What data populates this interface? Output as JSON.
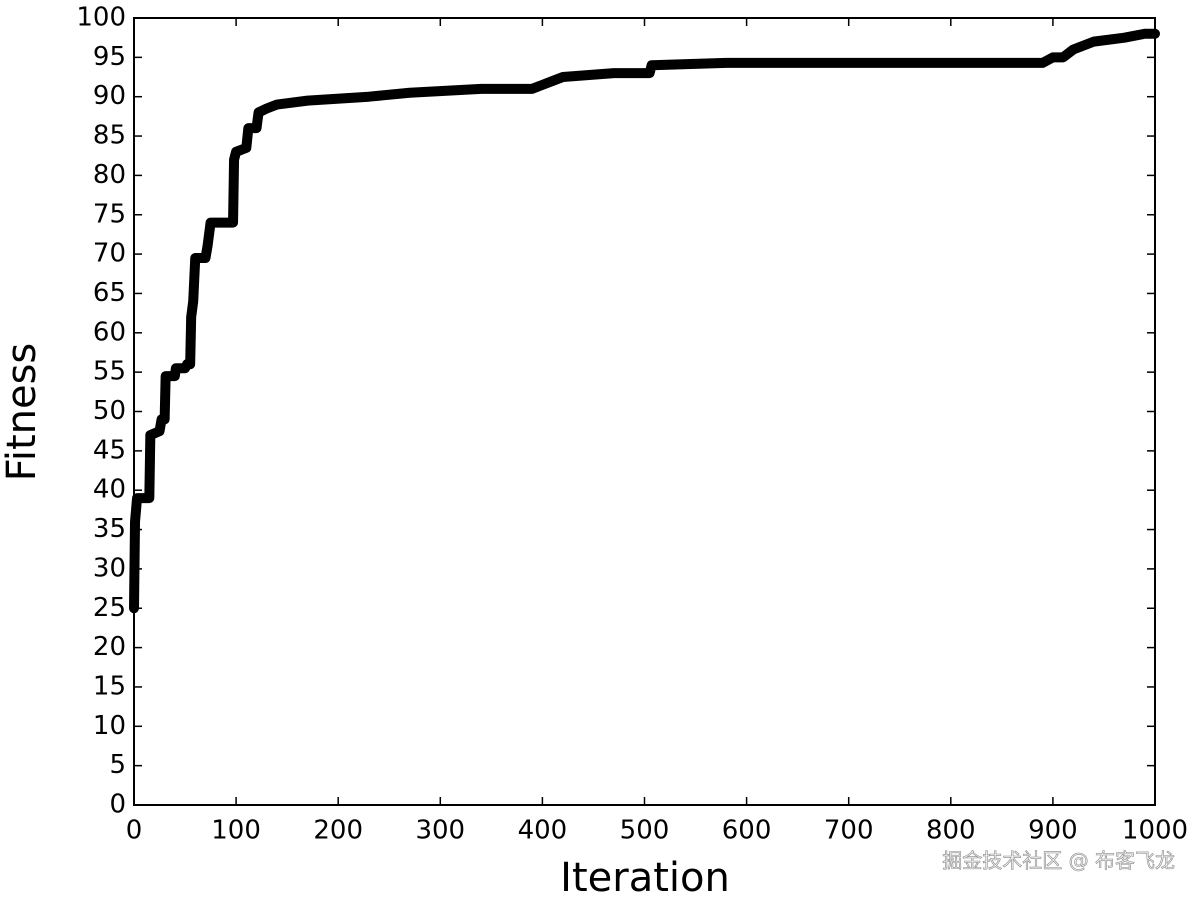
{
  "chart_data": {
    "type": "line",
    "xlabel": "Iteration",
    "ylabel": "Fitness",
    "x": [
      0,
      1,
      3,
      15,
      16,
      25,
      27,
      30,
      31,
      40,
      41,
      50,
      52,
      55,
      56,
      58,
      60,
      70,
      72,
      75,
      97,
      98,
      100,
      110,
      112,
      120,
      122,
      130,
      140,
      170,
      230,
      270,
      340,
      390,
      400,
      410,
      420,
      470,
      505,
      507,
      580,
      890,
      900,
      910,
      920,
      940,
      970,
      990,
      1000
    ],
    "series": [
      {
        "name": "Fitness",
        "color": "#000000",
        "values": [
          25,
          36,
          39,
          39,
          47,
          47.5,
          49,
          49,
          54.5,
          54.5,
          55.5,
          55.5,
          56,
          56,
          62,
          64,
          69.5,
          69.5,
          71,
          74,
          74,
          82,
          83,
          83.5,
          86,
          86,
          88,
          88.5,
          89,
          89.5,
          90,
          90.5,
          91,
          91,
          91.5,
          92,
          92.5,
          93,
          93,
          94,
          94.3,
          94.3,
          95,
          95,
          96,
          97,
          97.5,
          98,
          98
        ]
      }
    ],
    "xlim": [
      0,
      1000
    ],
    "ylim": [
      0,
      100
    ],
    "xticks": [
      0,
      100,
      200,
      300,
      400,
      500,
      600,
      700,
      800,
      900,
      1000
    ],
    "yticks": [
      0,
      5,
      10,
      15,
      20,
      25,
      30,
      35,
      40,
      45,
      50,
      55,
      60,
      65,
      70,
      75,
      80,
      85,
      90,
      95,
      100
    ],
    "watermark": "掘金技术社区 @ 布客飞龙"
  }
}
